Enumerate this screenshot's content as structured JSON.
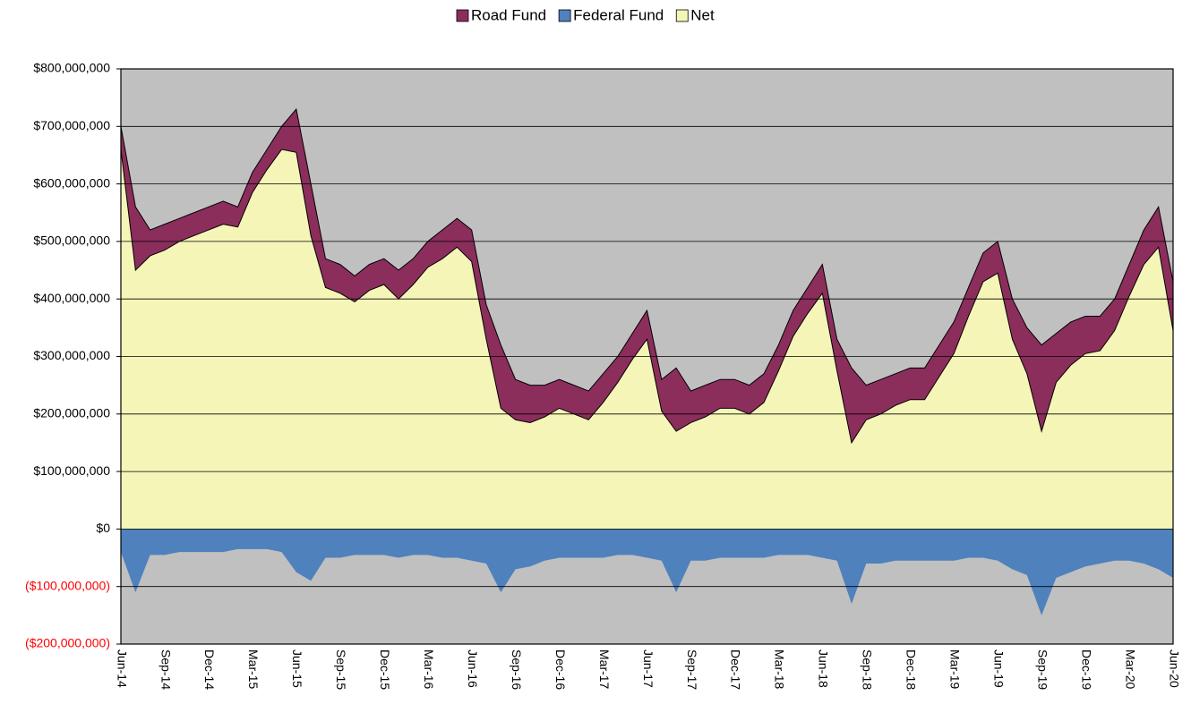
{
  "chart_data": {
    "type": "area",
    "categories": [
      "Jun-14",
      null,
      null,
      "Sep-14",
      null,
      null,
      "Dec-14",
      null,
      null,
      "Mar-15",
      null,
      null,
      "Jun-15",
      null,
      null,
      "Sep-15",
      null,
      null,
      "Dec-15",
      null,
      null,
      "Mar-16",
      null,
      null,
      "Jun-16",
      null,
      null,
      "Sep-16",
      null,
      null,
      "Dec-16",
      null,
      null,
      "Mar-17",
      null,
      null,
      "Jun-17",
      null,
      null,
      "Sep-17",
      null,
      null,
      "Dec-17",
      null,
      null,
      "Mar-18",
      null,
      null,
      "Jun-18",
      null,
      null,
      "Sep-18",
      null,
      null,
      "Dec-18",
      null,
      null,
      "Mar-19",
      null,
      null,
      "Jun-19",
      null,
      null,
      "Sep-19",
      null,
      null,
      "Dec-19",
      null,
      null,
      "Mar-20",
      null,
      null,
      "Jun-20"
    ],
    "series": [
      {
        "name": "Road Fund",
        "color": "#8b2e5c",
        "values": [
          700000000,
          560000000,
          520000000,
          530000000,
          540000000,
          550000000,
          560000000,
          570000000,
          560000000,
          620000000,
          660000000,
          700000000,
          730000000,
          600000000,
          470000000,
          460000000,
          440000000,
          460000000,
          470000000,
          450000000,
          470000000,
          500000000,
          520000000,
          540000000,
          520000000,
          390000000,
          320000000,
          260000000,
          250000000,
          250000000,
          260000000,
          250000000,
          240000000,
          270000000,
          300000000,
          340000000,
          380000000,
          260000000,
          280000000,
          240000000,
          250000000,
          260000000,
          260000000,
          250000000,
          270000000,
          320000000,
          380000000,
          420000000,
          460000000,
          330000000,
          280000000,
          250000000,
          260000000,
          270000000,
          280000000,
          280000000,
          320000000,
          360000000,
          420000000,
          480000000,
          500000000,
          400000000,
          350000000,
          320000000,
          340000000,
          360000000,
          370000000,
          370000000,
          400000000,
          460000000,
          520000000,
          560000000,
          430000000
        ]
      },
      {
        "name": "Federal Fund",
        "color": "#4f81bd",
        "values": [
          -40000000,
          -110000000,
          -45000000,
          -45000000,
          -40000000,
          -40000000,
          -40000000,
          -40000000,
          -35000000,
          -35000000,
          -35000000,
          -40000000,
          -75000000,
          -90000000,
          -50000000,
          -50000000,
          -45000000,
          -45000000,
          -45000000,
          -50000000,
          -45000000,
          -45000000,
          -50000000,
          -50000000,
          -55000000,
          -60000000,
          -110000000,
          -70000000,
          -65000000,
          -55000000,
          -50000000,
          -50000000,
          -50000000,
          -50000000,
          -45000000,
          -45000000,
          -50000000,
          -55000000,
          -110000000,
          -55000000,
          -55000000,
          -50000000,
          -50000000,
          -50000000,
          -50000000,
          -45000000,
          -45000000,
          -45000000,
          -50000000,
          -55000000,
          -130000000,
          -60000000,
          -60000000,
          -55000000,
          -55000000,
          -55000000,
          -55000000,
          -55000000,
          -50000000,
          -50000000,
          -55000000,
          -70000000,
          -80000000,
          -150000000,
          -85000000,
          -75000000,
          -65000000,
          -60000000,
          -55000000,
          -55000000,
          -60000000,
          -70000000,
          -85000000
        ]
      },
      {
        "name": "Net",
        "color": "#f5f5b8",
        "values": [
          660000000,
          450000000,
          475000000,
          485000000,
          500000000,
          510000000,
          520000000,
          530000000,
          525000000,
          585000000,
          625000000,
          660000000,
          655000000,
          510000000,
          420000000,
          410000000,
          395000000,
          415000000,
          425000000,
          400000000,
          425000000,
          455000000,
          470000000,
          490000000,
          465000000,
          330000000,
          210000000,
          190000000,
          185000000,
          195000000,
          210000000,
          200000000,
          190000000,
          220000000,
          255000000,
          295000000,
          330000000,
          205000000,
          170000000,
          185000000,
          195000000,
          210000000,
          210000000,
          200000000,
          220000000,
          275000000,
          335000000,
          375000000,
          410000000,
          275000000,
          150000000,
          190000000,
          200000000,
          215000000,
          225000000,
          225000000,
          265000000,
          305000000,
          370000000,
          430000000,
          445000000,
          330000000,
          270000000,
          170000000,
          255000000,
          285000000,
          305000000,
          310000000,
          345000000,
          405000000,
          460000000,
          490000000,
          345000000
        ]
      }
    ],
    "ylim": [
      -200000000,
      800000000
    ],
    "yticks": [
      {
        "value": -200000000,
        "label": "($200,000,000)"
      },
      {
        "value": -100000000,
        "label": "($100,000,000)"
      },
      {
        "value": 0,
        "label": "$0"
      },
      {
        "value": 100000000,
        "label": "$100,000,000"
      },
      {
        "value": 200000000,
        "label": "$200,000,000"
      },
      {
        "value": 300000000,
        "label": "$300,000,000"
      },
      {
        "value": 400000000,
        "label": "$400,000,000"
      },
      {
        "value": 500000000,
        "label": "$500,000,000"
      },
      {
        "value": 600000000,
        "label": "$600,000,000"
      },
      {
        "value": 700000000,
        "label": "$700,000,000"
      },
      {
        "value": 800000000,
        "label": "$800,000,000"
      }
    ],
    "negative_tick_color": "#ff0000",
    "plot_background": "#c0c0c0",
    "grid": true,
    "legend": "top"
  }
}
